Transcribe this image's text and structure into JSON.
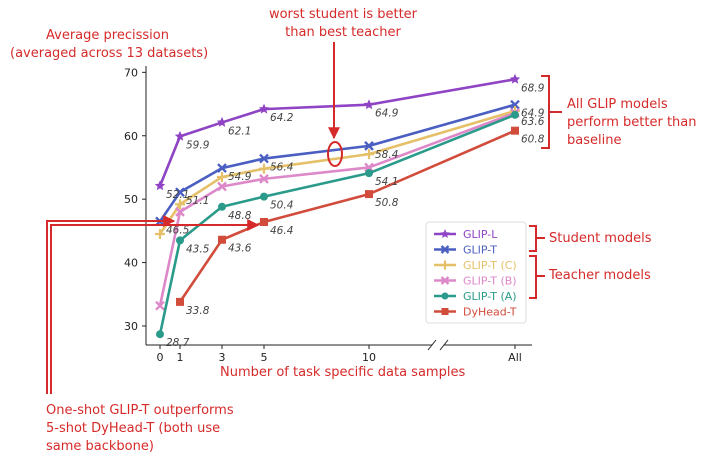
{
  "annotations": {
    "ylabel_line1": "Average precission",
    "ylabel_line2": "(averaged across 13 datasets)",
    "top_line1": "worst student is better",
    "top_line2": "than best teacher",
    "right_line1": "All GLIP models",
    "right_line2": "perform better than",
    "right_line3": "baseline",
    "student": "Student models",
    "teacher": "Teacher models",
    "xlabel": "Number of task specific data samples",
    "bottom_line1": "One-shot GLIP-T outperforms",
    "bottom_line2": "5-shot DyHead-T (both use",
    "bottom_line3": "same backbone)"
  },
  "colors": {
    "annotation": "#d62a2a",
    "axis": "#222222"
  },
  "chart_data": {
    "type": "line",
    "x": [
      "0",
      "1",
      "3",
      "5",
      "10",
      "All"
    ],
    "ylim": [
      27,
      71
    ],
    "yticks": [
      30,
      40,
      50,
      60,
      70
    ],
    "x_axis_break": true,
    "legend_position": "lower-right",
    "series": [
      {
        "name": "GLIP-L",
        "color": "#8e44c4",
        "marker": "star",
        "x": [
          "0",
          "1",
          "3",
          "5",
          "10",
          "All"
        ],
        "values": [
          52.1,
          59.9,
          62.1,
          64.2,
          64.9,
          68.9
        ],
        "labels": [
          "52.1",
          "59.9",
          "62.1",
          "64.2",
          "64.9",
          "68.9"
        ]
      },
      {
        "name": "GLIP-T",
        "color": "#4a5fc1",
        "marker": "x",
        "x": [
          "0",
          "1",
          "3",
          "5",
          "10",
          "All"
        ],
        "values": [
          46.5,
          51.1,
          54.9,
          56.4,
          58.4,
          64.9
        ],
        "labels": [
          "46.5",
          "51.1",
          "54.9",
          "56.4",
          "58.4",
          "64.9"
        ]
      },
      {
        "name": "GLIP-T (C)",
        "color": "#e6c068",
        "marker": "plus",
        "x": [
          "0",
          "1",
          "3",
          "5",
          "10",
          "All"
        ],
        "values": [
          44.5,
          49.2,
          53.5,
          54.8,
          57.1,
          63.9
        ],
        "labels": []
      },
      {
        "name": "GLIP-T (B)",
        "color": "#dd88c9",
        "marker": "x",
        "x": [
          "0",
          "1",
          "3",
          "5",
          "10",
          "All"
        ],
        "values": [
          33.2,
          48.0,
          52.0,
          53.2,
          55.0,
          63.6
        ],
        "labels": [
          "",
          "",
          "",
          "",
          "",
          "63.6"
        ]
      },
      {
        "name": "GLIP-T (A)",
        "color": "#2a9a8a",
        "marker": "circle",
        "x": [
          "0",
          "1",
          "3",
          "5",
          "10",
          "All"
        ],
        "values": [
          28.7,
          43.5,
          48.8,
          50.4,
          54.1,
          63.3
        ],
        "labels": [
          "28.7",
          "43.5",
          "48.8",
          "50.4",
          "54.1",
          ""
        ]
      },
      {
        "name": "DyHead-T",
        "color": "#d24c3c",
        "marker": "square",
        "x": [
          "1",
          "3",
          "5",
          "10",
          "All"
        ],
        "values": [
          33.8,
          43.6,
          46.4,
          50.8,
          60.8
        ],
        "labels": [
          "33.8",
          "43.6",
          "46.4",
          "50.8",
          "60.8"
        ]
      }
    ]
  }
}
